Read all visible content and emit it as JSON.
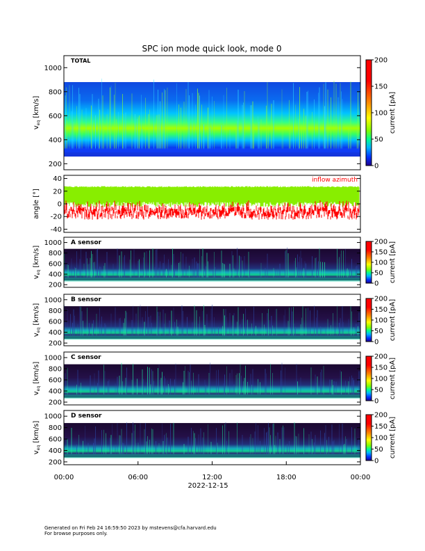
{
  "chart_data": {
    "type": "heatmap",
    "title": "SPC ion mode quick look, mode 0",
    "x_ticks": [
      "00:00",
      "06:00",
      "12:00",
      "18:00",
      "00:00"
    ],
    "x_date_label": "2022-12-15",
    "panels": [
      {
        "kind": "spectrogram",
        "label": "TOTAL",
        "ylabel": "v",
        "ylabel_sub": "eq",
        "ylabel_unit": "[km/s]",
        "ylim": [
          150,
          1100
        ],
        "yticks": [
          "200",
          "400",
          "600",
          "800",
          "1000"
        ],
        "colorbar": {
          "label": "current [pA]",
          "ticks": [
            "0",
            "50",
            "100",
            "150",
            "200"
          ]
        }
      },
      {
        "kind": "angle",
        "label": "inflow azimuth",
        "ylabel": "angle [°]",
        "ylim": [
          -45,
          45
        ],
        "yticks": [
          "-40",
          "-20",
          "0",
          "20",
          "40"
        ],
        "series": [
          {
            "color": "#88ee00",
            "range": [
              -5,
              28
            ]
          },
          {
            "color": "#ff0000",
            "range": [
              -25,
              8
            ]
          }
        ]
      },
      {
        "kind": "spectrogram",
        "label": "A sensor",
        "ylabel": "v",
        "ylabel_sub": "eq",
        "ylabel_unit": "[km/s]",
        "ylim": [
          150,
          1100
        ],
        "yticks": [
          "200",
          "400",
          "600",
          "800",
          "1000"
        ],
        "colorbar": {
          "label": "current [pA]",
          "ticks": [
            "0",
            "50",
            "100",
            "150",
            "200"
          ]
        }
      },
      {
        "kind": "spectrogram",
        "label": "B sensor",
        "ylabel": "v",
        "ylabel_sub": "eq",
        "ylabel_unit": "[km/s]",
        "ylim": [
          150,
          1100
        ],
        "yticks": [
          "200",
          "400",
          "600",
          "800",
          "1000"
        ],
        "colorbar": {
          "label": "current [pA]",
          "ticks": [
            "0",
            "50",
            "100",
            "150",
            "200"
          ]
        }
      },
      {
        "kind": "spectrogram",
        "label": "C sensor",
        "ylabel": "v",
        "ylabel_sub": "eq",
        "ylabel_unit": "[km/s]",
        "ylim": [
          150,
          1100
        ],
        "yticks": [
          "200",
          "400",
          "600",
          "800",
          "1000"
        ],
        "colorbar": {
          "label": "current [pA]",
          "ticks": [
            "0",
            "50",
            "100",
            "150",
            "200"
          ]
        }
      },
      {
        "kind": "spectrogram",
        "label": "D sensor",
        "ylabel": "v",
        "ylabel_sub": "eq",
        "ylabel_unit": "[km/s]",
        "ylim": [
          150,
          1100
        ],
        "yticks": [
          "200",
          "400",
          "600",
          "800",
          "1000"
        ],
        "colorbar": {
          "label": "current [pA]",
          "ticks": [
            "0",
            "50",
            "100",
            "150",
            "200"
          ]
        }
      }
    ]
  },
  "footer": {
    "line1": "Generated on Fri Feb 24 16:59:50 2023 by mstevens@cfa.harvard.edu",
    "line2": "For browse purposes only."
  }
}
